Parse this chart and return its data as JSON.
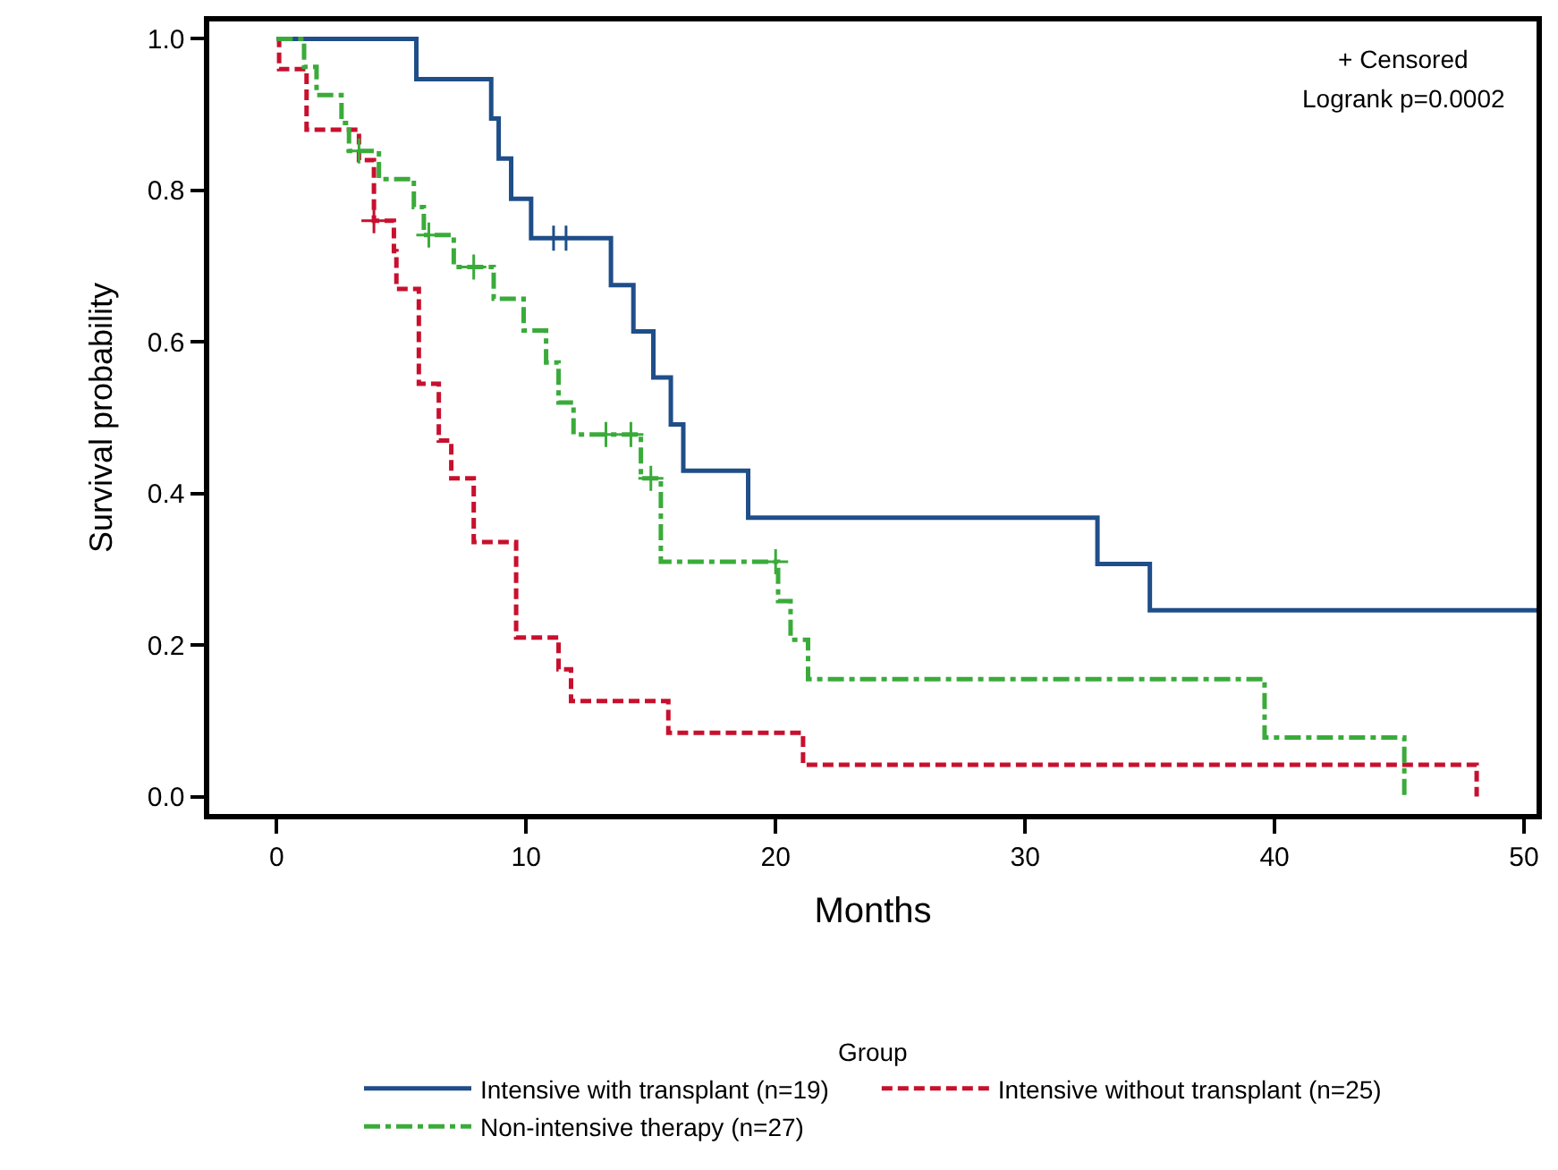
{
  "chart_data": {
    "type": "step",
    "xlabel": "Months",
    "ylabel": "Survival probability",
    "legend_title": "Group",
    "legend": "bottom",
    "xlim": [
      -2.7,
      50.5
    ],
    "ylim": [
      -0.023,
      1.023
    ],
    "xticks": [
      0,
      10,
      20,
      30,
      40,
      50
    ],
    "yticks": [
      {
        "value": 0,
        "label": "0.0"
      },
      {
        "value": 0.2,
        "label": "0.2"
      },
      {
        "value": 0.4,
        "label": "0.4"
      },
      {
        "value": 0.6,
        "label": "0.6"
      },
      {
        "value": 0.8,
        "label": "0.8"
      },
      {
        "value": 1,
        "label": "1.0"
      }
    ],
    "annotations": [
      "+ Censored",
      "Logrank p=0.0002"
    ],
    "series": [
      {
        "name": "Intensive with transplant (n=19)",
        "color": "#1f4e89",
        "line_style": "solid",
        "x": [
          0,
          5.6,
          8.6,
          8.9,
          9.4,
          10.2,
          13.4,
          14.3,
          15.1,
          15.8,
          16.3,
          18.9,
          32.9,
          35.0,
          50.5
        ],
        "values": [
          1.0,
          0.947,
          0.895,
          0.842,
          0.789,
          0.737,
          0.675,
          0.614,
          0.553,
          0.491,
          0.43,
          0.368,
          0.307,
          0.246,
          0.246
        ]
      },
      {
        "name": "Intensive without transplant (n=25)",
        "color": "#c8102e",
        "line_style": "dashed",
        "x": [
          0,
          0.1,
          1.2,
          3.3,
          3.9,
          4.7,
          4.8,
          5.7,
          6.5,
          7.0,
          7.9,
          9.6,
          11.3,
          11.8,
          15.7,
          21.1,
          48.1
        ],
        "values": [
          1.0,
          0.96,
          0.88,
          0.84,
          0.76,
          0.72,
          0.67,
          0.545,
          0.47,
          0.42,
          0.336,
          0.21,
          0.168,
          0.126,
          0.084,
          0.042,
          0.0
        ]
      },
      {
        "name": "Non-intensive therapy (n=27)",
        "color": "#3aab3a",
        "line_style": "dashdot",
        "x": [
          0,
          1.1,
          1.6,
          2.6,
          2.9,
          4.1,
          5.5,
          5.9,
          7.1,
          8.7,
          9.9,
          10.8,
          11.3,
          11.9,
          14.6,
          15.4,
          20.1,
          20.6,
          21.3,
          39.6,
          45.2
        ],
        "values": [
          1.0,
          0.963,
          0.926,
          0.889,
          0.852,
          0.815,
          0.778,
          0.741,
          0.699,
          0.657,
          0.615,
          0.573,
          0.52,
          0.478,
          0.42,
          0.31,
          0.258,
          0.207,
          0.155,
          0.078,
          0.0
        ]
      },
      {
        "type": "scatter",
        "marker": "cross",
        "color": "#1f4e89",
        "x": [
          11.1,
          11.6
        ],
        "values": [
          0.737,
          0.737
        ]
      },
      {
        "type": "scatter",
        "marker": "cross",
        "color": "#c8102e",
        "x": [
          3.9
        ],
        "values": [
          0.76
        ]
      },
      {
        "type": "scatter",
        "marker": "cross",
        "color": "#3aab3a",
        "x": [
          3.3,
          6.1,
          7.9,
          13.2,
          14.2,
          15.0,
          20.0
        ],
        "values": [
          0.852,
          0.741,
          0.699,
          0.478,
          0.478,
          0.42,
          0.31
        ]
      }
    ]
  }
}
